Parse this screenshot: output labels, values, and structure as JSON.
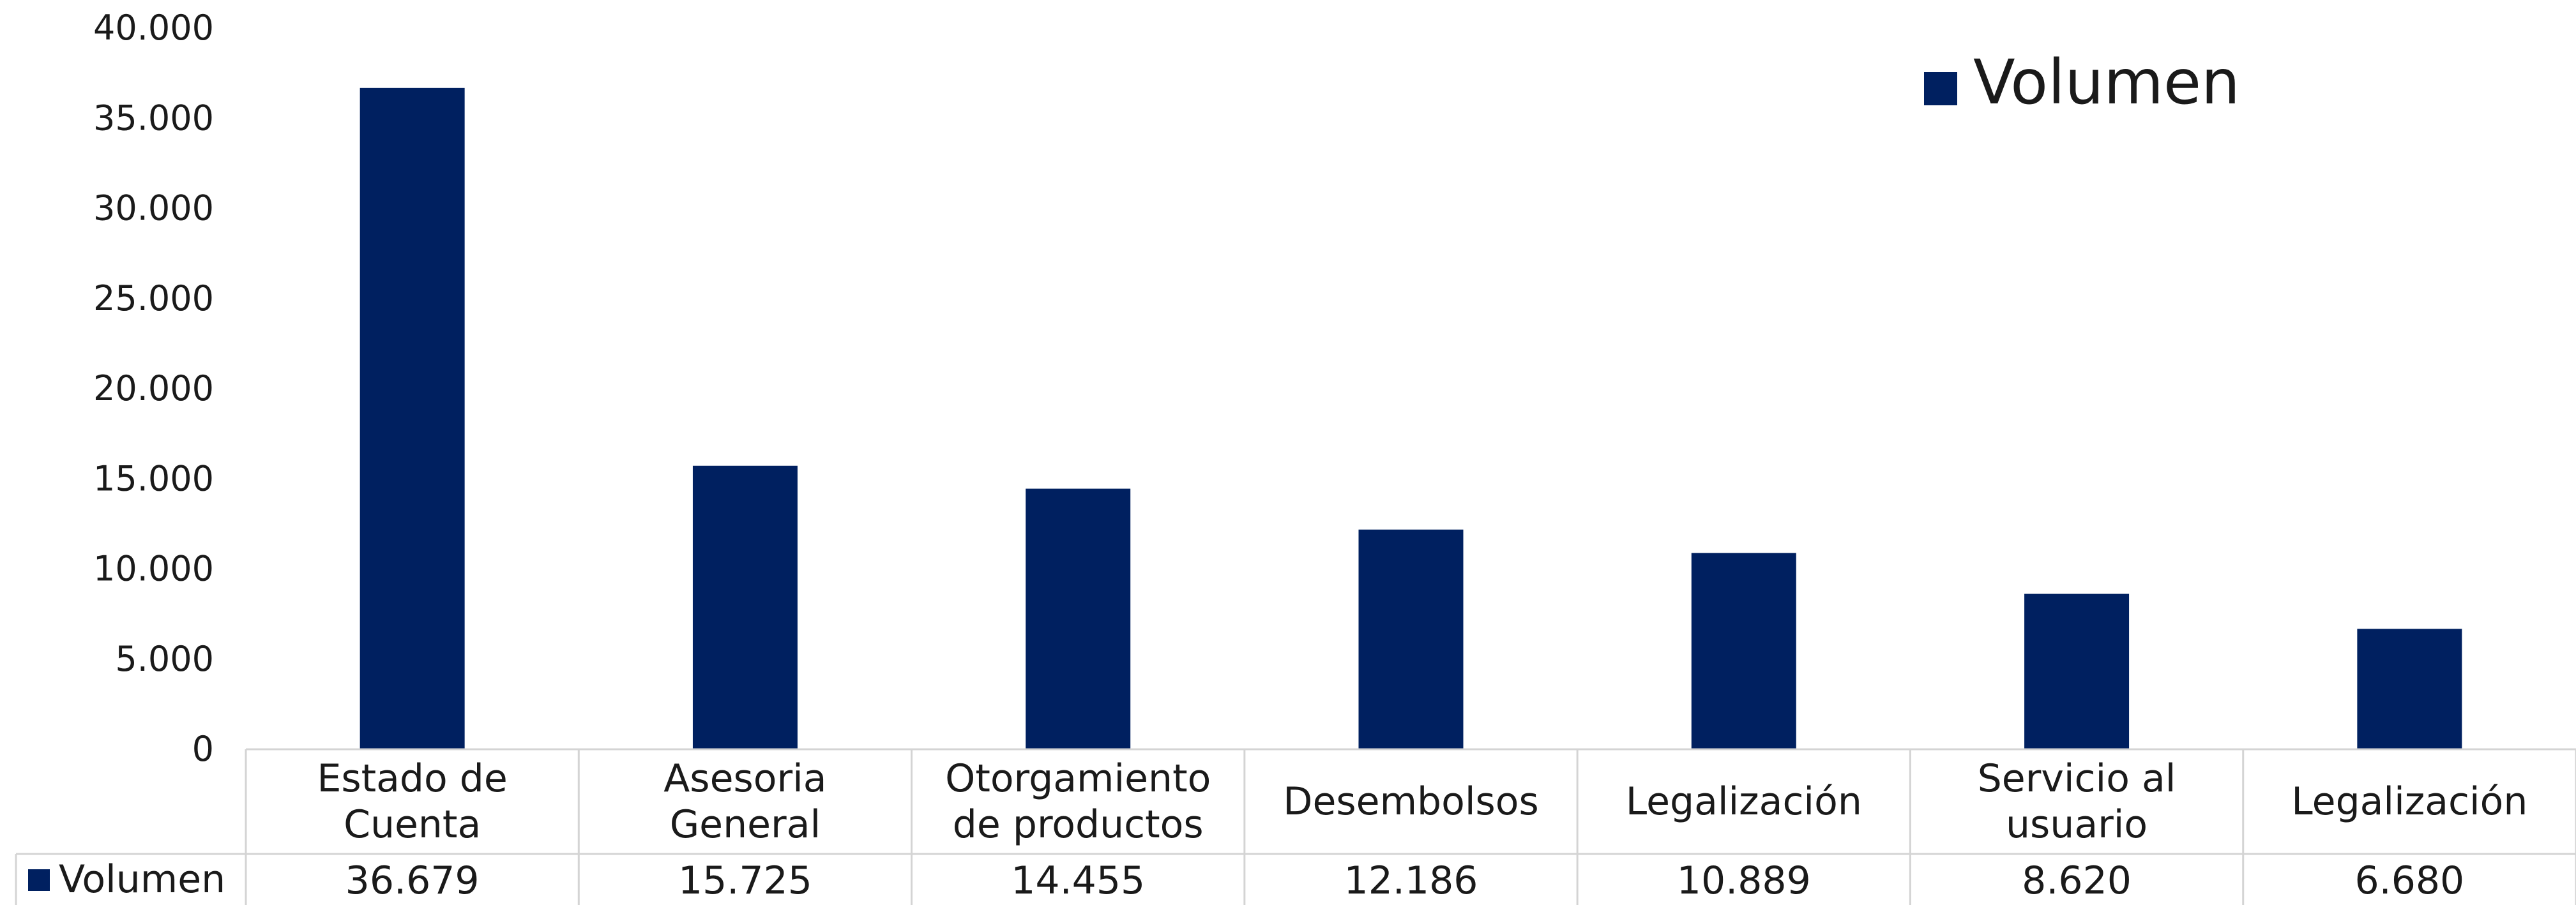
{
  "chart_data": {
    "type": "bar",
    "categories": [
      [
        "Estado de",
        "Cuenta"
      ],
      [
        "Asesoria",
        "General"
      ],
      [
        "Otorgamiento",
        "de productos"
      ],
      [
        "Desembolsos"
      ],
      [
        "Legalización"
      ],
      [
        "Servicio al",
        "usuario"
      ],
      [
        "Legalización"
      ]
    ],
    "series": [
      {
        "name": "Volumen",
        "values": [
          36679,
          15725,
          14455,
          12186,
          10889,
          8620,
          6680
        ],
        "display_values": [
          "36.679",
          "15.725",
          "14.455",
          "12.186",
          "10.889",
          "8.620",
          "6.680"
        ],
        "color": "#002060"
      }
    ],
    "y_ticks": [
      "0",
      "5.000",
      "10.000",
      "15.000",
      "20.000",
      "25.000",
      "30.000",
      "35.000",
      "40.000"
    ],
    "ylim": [
      0,
      40000
    ],
    "legend": {
      "placement": "top-right",
      "label": "Volumen"
    },
    "data_table": true,
    "grid": false
  }
}
